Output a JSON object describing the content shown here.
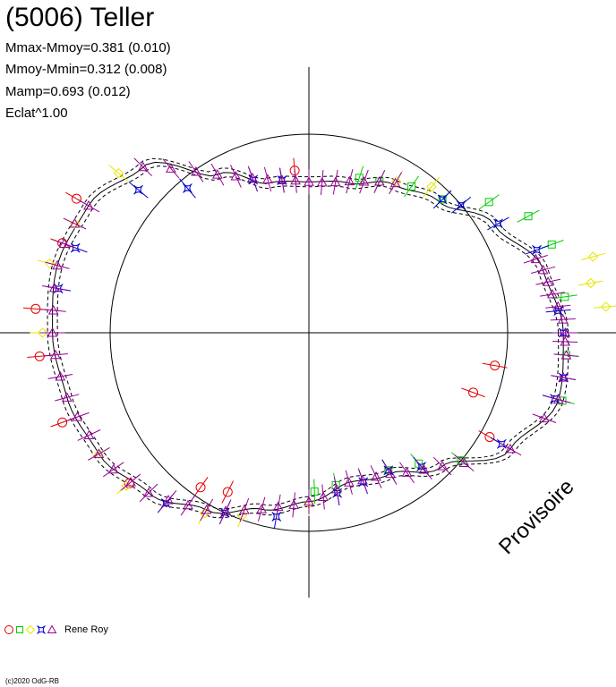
{
  "header": {
    "title": "(5006) Teller",
    "stats": [
      "Mmax-Mmoy=0.381 (0.010)",
      "Mmoy-Mmin=0.312 (0.008)",
      "Mamp=0.693 (0.012)",
      "Eclat^1.00"
    ]
  },
  "watermark": "Provisoire",
  "legend": {
    "label": "Rene Roy",
    "symbols": [
      "circle",
      "square",
      "diamond",
      "star",
      "triangle"
    ]
  },
  "copyright": "(c)2020 OdG-RB",
  "colors": {
    "red": "#e60000",
    "green": "#00cc00",
    "yellow": "#e6e600",
    "blue": "#0000cc",
    "magenta": "#990099",
    "axis": "#000000"
  },
  "chart_data": {
    "type": "scatter",
    "projection": "polar",
    "title": "(5006) Teller",
    "reference_circle_radius": 1.0,
    "fit_curve": {
      "angle_deg": [
        0,
        15,
        30,
        45,
        60,
        75,
        90,
        105,
        120,
        135,
        150,
        165,
        180,
        195,
        210,
        225,
        240,
        255,
        270,
        285,
        300,
        315,
        330,
        345
      ],
      "radius": [
        1.28,
        1.22,
        1.08,
        0.93,
        0.86,
        0.78,
        0.76,
        0.78,
        0.92,
        1.18,
        1.28,
        1.31,
        1.29,
        1.26,
        1.22,
        1.14,
        1.03,
        0.92,
        0.85,
        0.78,
        0.82,
        0.95,
        1.17,
        1.3
      ]
    },
    "series": [
      {
        "marker": "circle",
        "color": "red",
        "angle_deg": [
          150,
          160,
          175,
          185,
          200,
          220,
          235,
          243,
          95,
          340,
          350,
          330
        ],
        "radius": [
          1.35,
          1.32,
          1.38,
          1.36,
          1.32,
          1.18,
          0.95,
          0.9,
          0.82,
          0.88,
          0.95,
          1.05
        ]
      },
      {
        "marker": "square",
        "color": "green",
        "angle_deg": [
          20,
          28,
          36,
          45,
          55,
          65,
          72,
          272,
          280,
          300,
          310,
          320,
          345,
          355,
          8
        ],
        "radius": [
          1.3,
          1.25,
          1.12,
          0.95,
          0.9,
          0.84,
          0.82,
          0.8,
          0.78,
          0.8,
          0.86,
          1.0,
          1.32,
          1.3,
          1.3
        ]
      },
      {
        "marker": "diamond",
        "color": "yellow",
        "angle_deg": [
          5,
          10,
          15,
          50,
          60,
          140,
          155,
          165,
          180,
          210,
          220,
          240,
          250,
          270
        ],
        "radius": [
          1.5,
          1.44,
          1.48,
          0.96,
          0.88,
          1.25,
          1.3,
          1.35,
          1.34,
          1.22,
          1.2,
          1.05,
          0.98,
          0.86
        ]
      },
      {
        "marker": "star",
        "color": "blue",
        "angle_deg": [
          0,
          5,
          20,
          30,
          40,
          45,
          100,
          110,
          130,
          140,
          160,
          170,
          230,
          245,
          260,
          280,
          290,
          300,
          310,
          330,
          345,
          350
        ],
        "radius": [
          1.28,
          1.26,
          1.22,
          1.1,
          1.0,
          0.95,
          0.78,
          0.82,
          0.95,
          1.12,
          1.25,
          1.28,
          1.12,
          1.0,
          0.94,
          0.82,
          0.8,
          0.8,
          0.88,
          1.12,
          1.28,
          1.3
        ]
      },
      {
        "marker": "triangle",
        "color": "magenta",
        "angle_deg": [
          0,
          3,
          6,
          9,
          12,
          15,
          18,
          345,
          350,
          355,
          358,
          60,
          65,
          70,
          75,
          80,
          85,
          90,
          95,
          100,
          105,
          110,
          115,
          120,
          125,
          130,
          135,
          150,
          155,
          160,
          165,
          170,
          175,
          180,
          185,
          190,
          195,
          200,
          205,
          210,
          215,
          220,
          225,
          230,
          235,
          240,
          245,
          250,
          255,
          260,
          265,
          270,
          275,
          280,
          285,
          290,
          295,
          300,
          305,
          310,
          315,
          320,
          330,
          340
        ],
        "radius": [
          1.29,
          1.28,
          1.26,
          1.24,
          1.23,
          1.22,
          1.2,
          1.3,
          1.3,
          1.3,
          1.29,
          0.87,
          0.84,
          0.81,
          0.79,
          0.77,
          0.76,
          0.76,
          0.77,
          0.78,
          0.8,
          0.83,
          0.87,
          0.92,
          0.99,
          1.08,
          1.18,
          1.28,
          1.3,
          1.31,
          1.31,
          1.3,
          1.29,
          1.29,
          1.28,
          1.27,
          1.26,
          1.24,
          1.22,
          1.22,
          1.2,
          1.17,
          1.14,
          1.1,
          1.06,
          1.03,
          0.99,
          0.95,
          0.92,
          0.89,
          0.87,
          0.85,
          0.83,
          0.8,
          0.78,
          0.79,
          0.8,
          0.82,
          0.86,
          0.9,
          0.95,
          1.02,
          1.17,
          1.26
        ]
      }
    ]
  }
}
